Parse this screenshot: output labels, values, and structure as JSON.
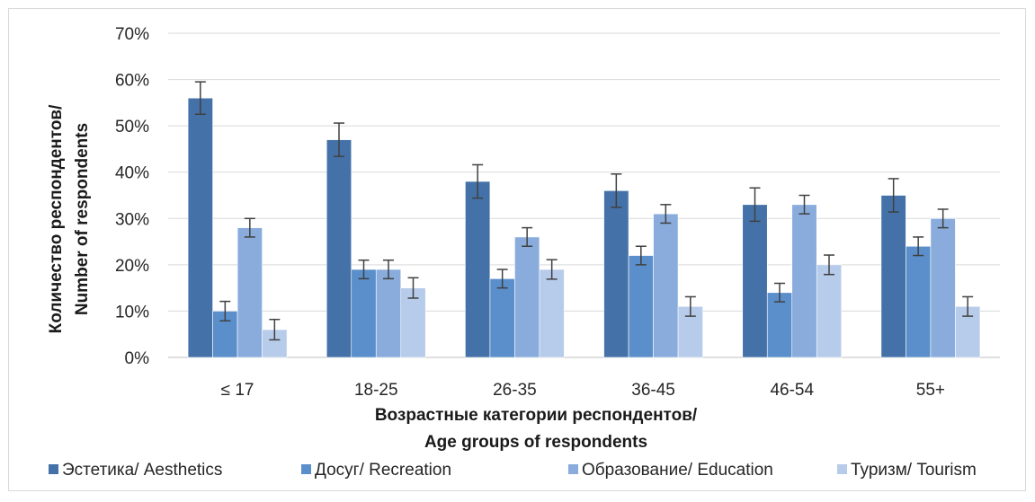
{
  "chart_data": {
    "type": "bar",
    "categories": [
      "≤ 17",
      "18-25",
      "26-35",
      "36-45",
      "46-54",
      "55+"
    ],
    "series": [
      {
        "name": "Эстетика/ Aesthetics",
        "color": "#4472a8",
        "values": [
          56,
          47,
          38,
          36,
          33,
          35
        ],
        "errors": [
          3.5,
          3.6,
          3.6,
          3.6,
          3.6,
          3.6
        ]
      },
      {
        "name": "Досуг/ Recreation",
        "color": "#5b8fcb",
        "values": [
          10,
          19,
          17,
          22,
          14,
          24
        ],
        "errors": [
          2.1,
          2.0,
          2.0,
          2.0,
          2.0,
          2.0
        ]
      },
      {
        "name": "Образование/ Education",
        "color": "#89acdc",
        "values": [
          28,
          19,
          26,
          31,
          33,
          30
        ],
        "errors": [
          2.0,
          2.0,
          2.0,
          2.0,
          2.0,
          2.0
        ]
      },
      {
        "name": "Туризм/ Tourism",
        "color": "#b7cbea",
        "values": [
          6,
          15,
          19,
          11,
          20,
          11
        ],
        "errors": [
          2.2,
          2.2,
          2.1,
          2.1,
          2.1,
          2.1
        ]
      }
    ],
    "ylim": [
      0,
      70
    ],
    "yticks": [
      0,
      10,
      20,
      30,
      40,
      50,
      60,
      70
    ],
    "ytick_format": "%",
    "ylabel": [
      "Количество респондентов/",
      "Number of respondents"
    ],
    "xlabel": [
      "Возрастные категории респондентов/",
      "Age groups of respondents"
    ],
    "grid": true,
    "legend_position": "bottom",
    "error_bar_color": "#404040",
    "gridline_color": "#d9d9d9"
  }
}
